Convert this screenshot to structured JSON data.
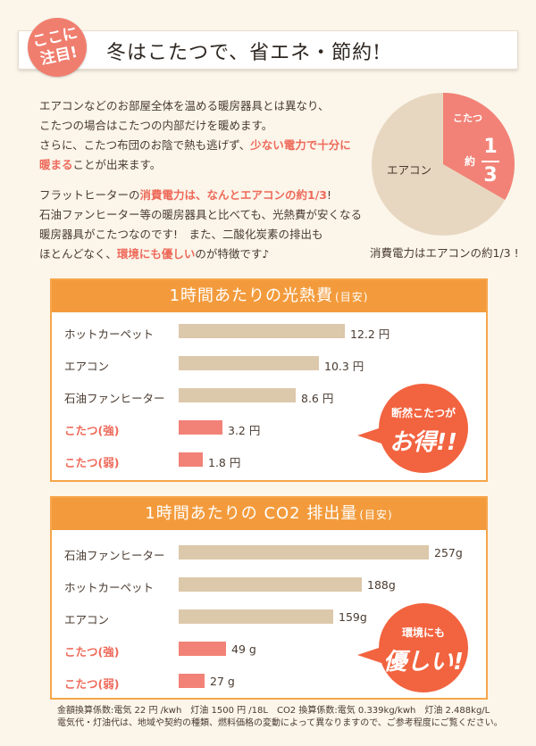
{
  "header": {
    "badge_line1": "ここに",
    "badge_line2": "注目!",
    "title": "冬はこたつで、省エネ・節約!"
  },
  "intro": {
    "p1_l1": "エアコンなどのお部屋全体を温める暖房器具とは異なり、",
    "p1_l2": "こたつの場合はこたつの内部だけを暖めます。",
    "p1_l3": "さらに、こたつ布団のお陰で熱も逃げず、",
    "p1_l3_hl": "少ない電力で十分に",
    "p1_l4_hl": "暖まる",
    "p1_l4": "ことが出来ます。",
    "p2_l1": "フラットヒーターの",
    "p2_l1_hl": "消費電力は、なんとエアコンの約1/3",
    "p2_l1_end": "!",
    "p2_l2": "石油ファンヒーター等の暖房器具と比べても、光熱費が安くなる",
    "p2_l3": "暖房器具がこたつなのです!　また、二酸化炭素の排出も",
    "p2_l4": "ほとんどなく、",
    "p2_l4_hl": "環境にも優しい",
    "p2_l4_end": "のが特徴です♪"
  },
  "pie": {
    "eacon_label": "エアコン",
    "kotatsu_label": "こたつ",
    "yaku": "約",
    "numerator": "1",
    "denominator": "3",
    "fraction": 0.3333,
    "caption": "消費電力はエアコンの約1/3 !",
    "base_color": "#e8d7c0",
    "slice_color": "#f28277"
  },
  "cost_panel": {
    "title": "1時間あたりの光熱費",
    "title_small": "(目安)",
    "burst_line1": "断然こたつが",
    "burst_line2": "お得!!",
    "items": [
      {
        "label": "ホットカーペット",
        "value": 12.2,
        "display": "12.2 円",
        "pink": false
      },
      {
        "label": "エアコン",
        "value": 10.3,
        "display": "10.3 円",
        "pink": false
      },
      {
        "label": "石油ファンヒーター",
        "value": 8.6,
        "display": "8.6 円",
        "pink": false
      },
      {
        "label": "こたつ(強)",
        "value": 3.2,
        "display": "3.2 円",
        "pink": true
      },
      {
        "label": "こたつ(弱)",
        "value": 1.8,
        "display": "1.8 円",
        "pink": true
      }
    ]
  },
  "co2_panel": {
    "title": "1時間あたりの CO2 排出量",
    "title_small": "(目安)",
    "burst_line1": "環境にも",
    "burst_line2": "優しい!",
    "items": [
      {
        "label": "石油ファンヒーター",
        "value": 257,
        "display": "257g",
        "pink": false
      },
      {
        "label": "ホットカーペット",
        "value": 188,
        "display": "188g",
        "pink": false
      },
      {
        "label": "エアコン",
        "value": 159,
        "display": "159g",
        "pink": false
      },
      {
        "label": "こたつ(強)",
        "value": 49,
        "display": "49 g",
        "pink": true
      },
      {
        "label": "こたつ(弱)",
        "value": 27,
        "display": "27 g",
        "pink": true
      }
    ]
  },
  "footer": {
    "line1": "金額換算係数:電気 22 円 /kwh　灯油 1500 円 /18L　CO2 換算係数:電気 0.339kg/kwh　灯油 2.488kg/L",
    "line2": "電気代・灯油代は、地域や契約の種類、燃料価格の変動によって異なりますので、ご参考程度にご覧ください。"
  }
}
